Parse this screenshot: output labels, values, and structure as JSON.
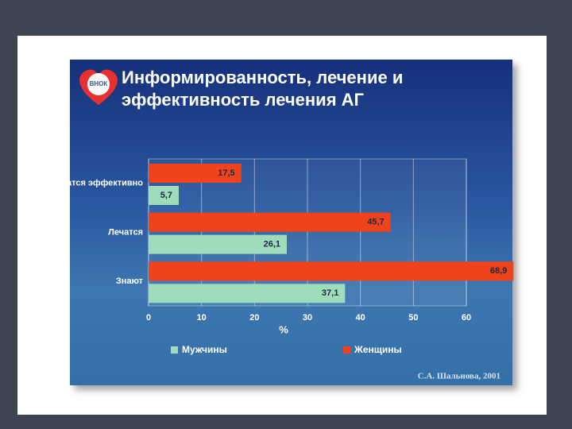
{
  "chart_data": {
    "type": "barh",
    "title": "Информированность, лечение и эффективность лечения АГ",
    "logo": "ВНОК",
    "categories": [
      "Лечатся эффективно",
      "Лечатся",
      "Знают"
    ],
    "series": [
      {
        "name": "Мужчины",
        "color": "#9fdcbc",
        "values": [
          5.7,
          26.1,
          37.1
        ],
        "value_labels": [
          "5,7",
          "26,1",
          "37,1"
        ]
      },
      {
        "name": "Женщины",
        "color": "#f0431c",
        "values": [
          17.5,
          45.7,
          68.9
        ],
        "value_labels": [
          "17,5",
          "45,7",
          "68,9"
        ]
      }
    ],
    "xlim": [
      0,
      60
    ],
    "xticks": [
      0,
      10,
      20,
      30,
      40,
      50,
      60
    ],
    "xlabel": "%",
    "grid": true,
    "legend": "bottom",
    "credit": "С.А. Шальнова, 2001"
  }
}
